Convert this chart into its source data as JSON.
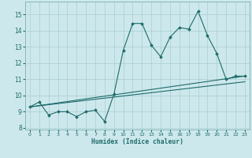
{
  "xlabel": "Humidex (Indice chaleur)",
  "bg_color": "#cde8ec",
  "grid_color": "#a8cdd2",
  "line_color": "#1e6b6b",
  "xlim": [
    -0.5,
    23.5
  ],
  "ylim": [
    7.9,
    15.8
  ],
  "yticks": [
    8,
    9,
    10,
    11,
    12,
    13,
    14,
    15
  ],
  "xticks": [
    0,
    1,
    2,
    3,
    4,
    5,
    6,
    7,
    8,
    9,
    10,
    11,
    12,
    13,
    14,
    15,
    16,
    17,
    18,
    19,
    20,
    21,
    22,
    23
  ],
  "line1_x": [
    0,
    1,
    2,
    3,
    4,
    5,
    6,
    7,
    8,
    9,
    10,
    11,
    12,
    13,
    14,
    15,
    16,
    17,
    18,
    19,
    20,
    21,
    22,
    23
  ],
  "line1_y": [
    9.3,
    9.6,
    8.8,
    9.0,
    9.0,
    8.7,
    9.0,
    9.1,
    8.4,
    10.1,
    12.8,
    14.45,
    14.45,
    13.1,
    12.4,
    13.6,
    14.2,
    14.1,
    15.2,
    13.7,
    12.6,
    11.0,
    11.2,
    11.2
  ],
  "line2_x": [
    0,
    23
  ],
  "line2_y": [
    9.3,
    11.2
  ],
  "line3_x": [
    0,
    23
  ],
  "line3_y": [
    9.3,
    10.85
  ]
}
